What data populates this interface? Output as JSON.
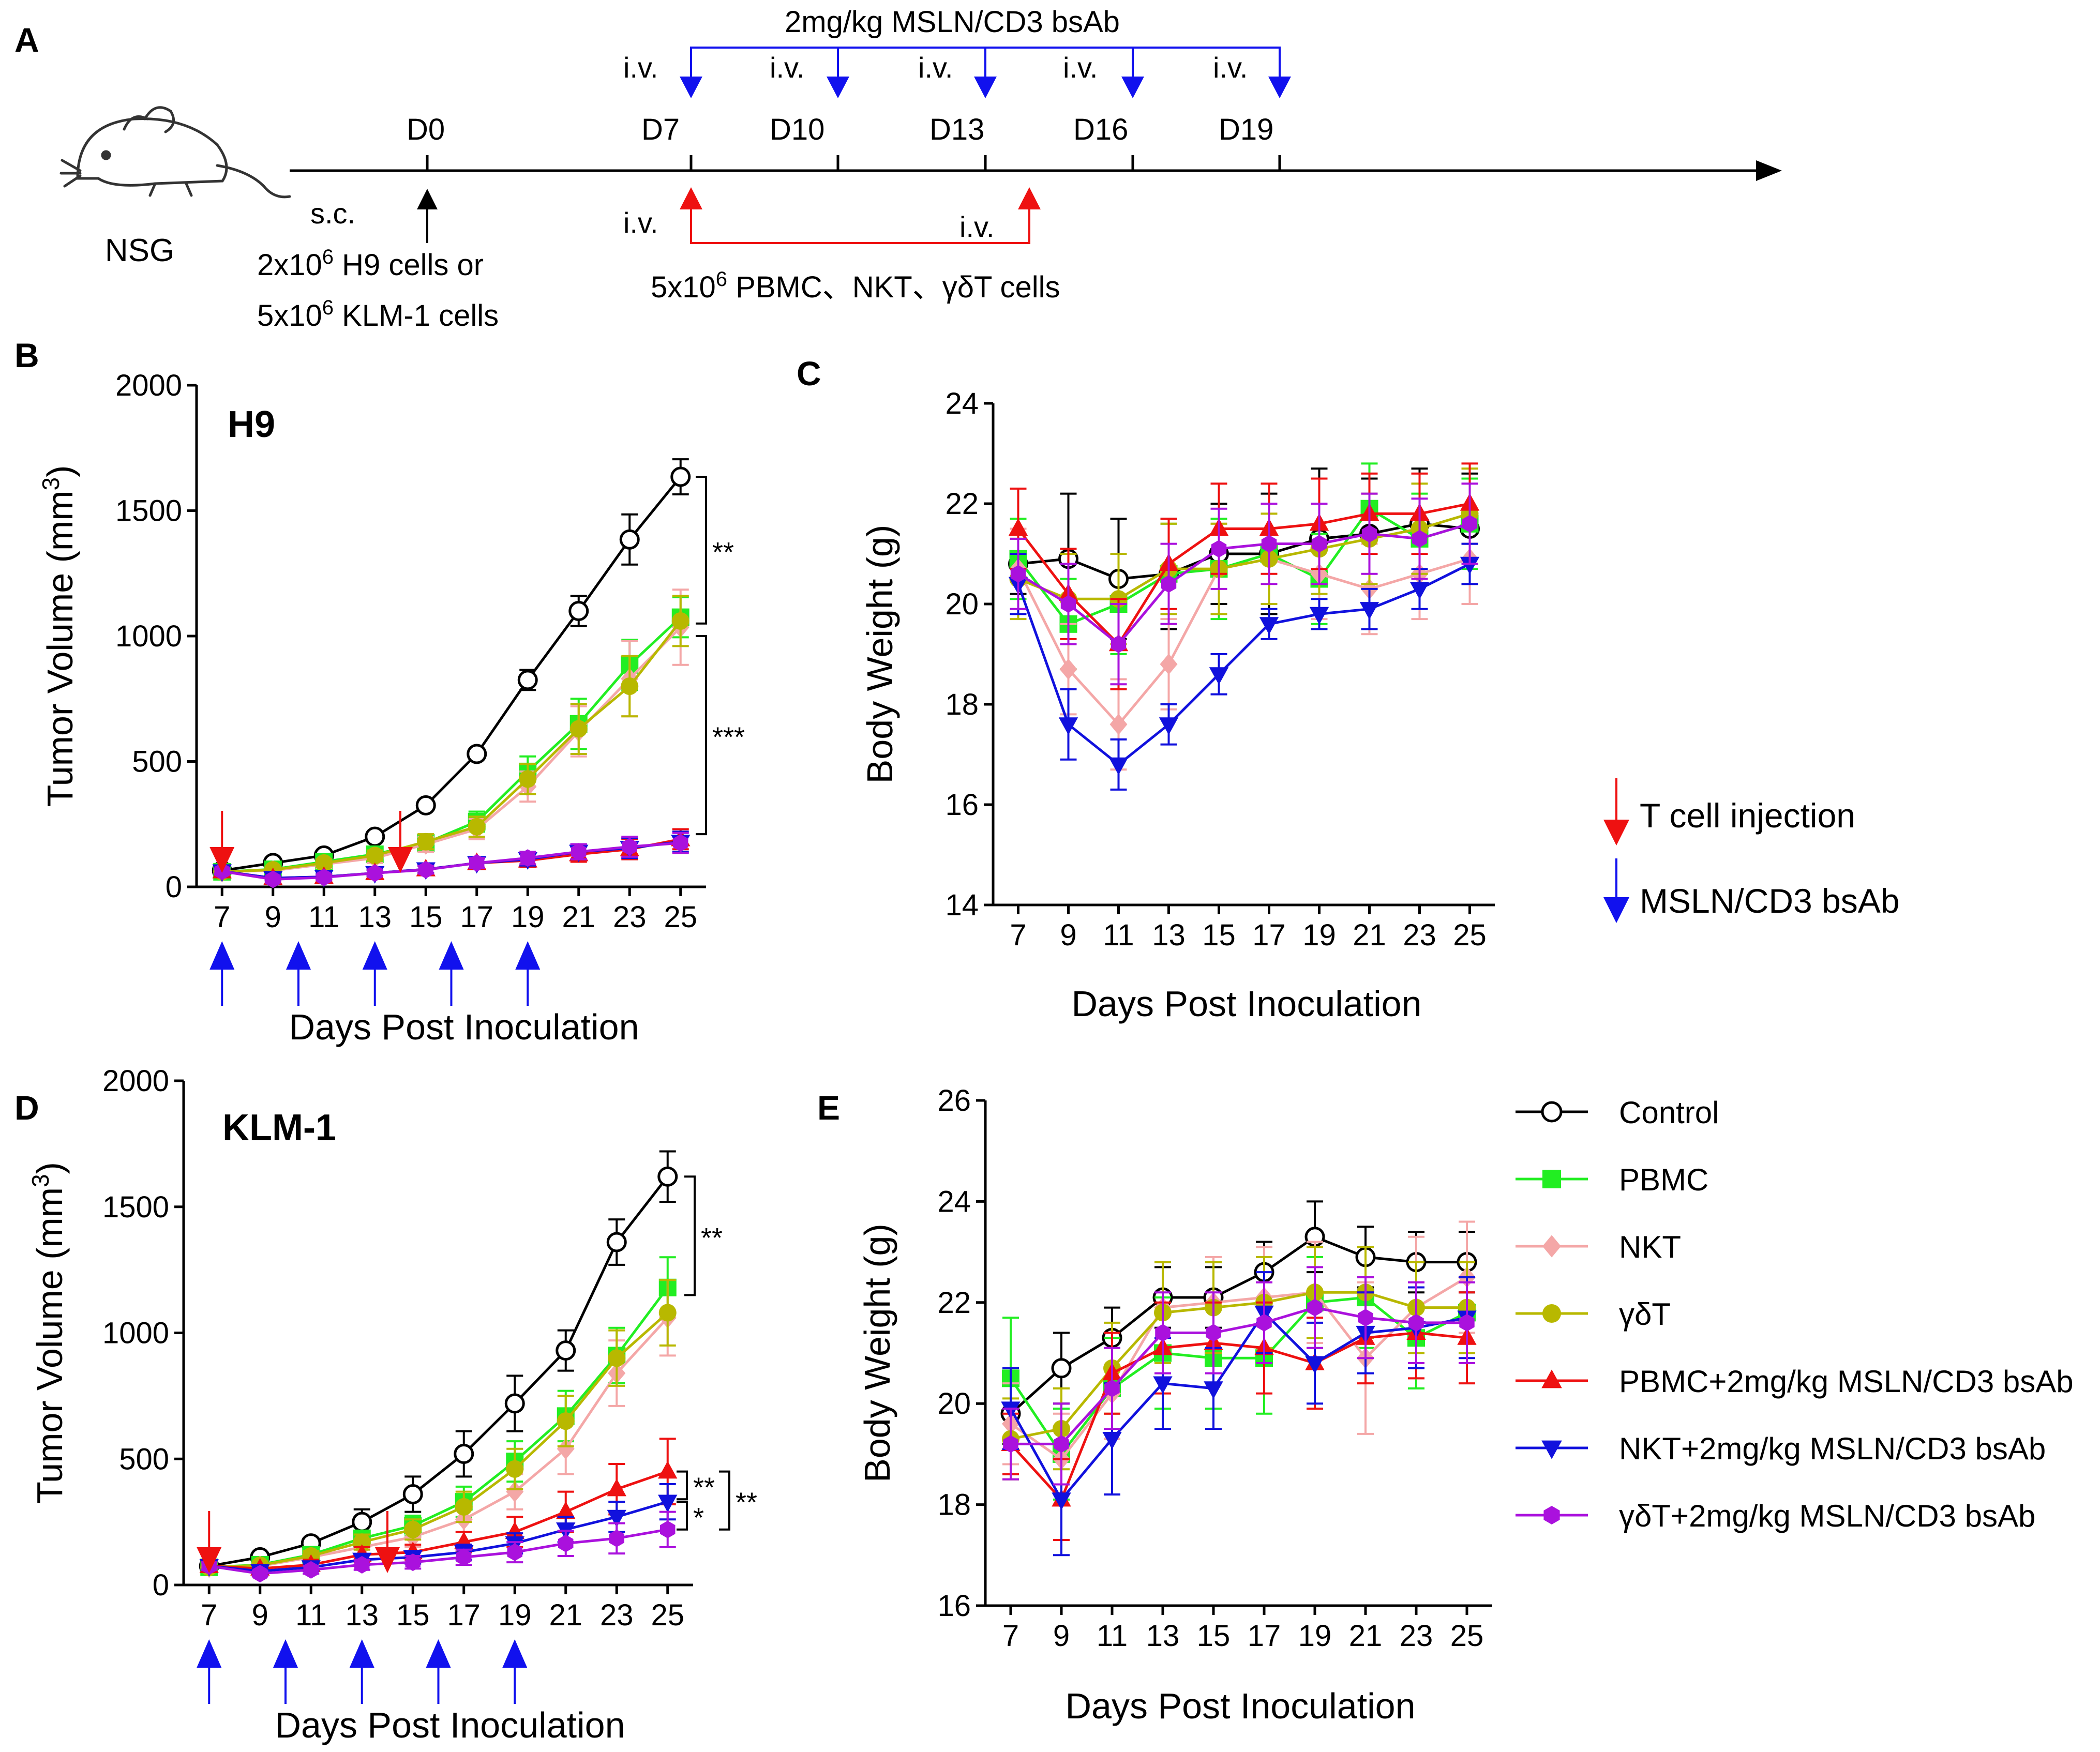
{
  "colors": {
    "control": "#000000",
    "pbmc": "#22ee22",
    "nkt": "#f4a7a7",
    "gdT": "#b8b800",
    "pbmc_bsab": "#ee1111",
    "nkt_bsab": "#1111dd",
    "gdT_bsab": "#aa11dd",
    "t_cell_arrow": "#ee1111",
    "bsab_arrow": "#1111ee"
  },
  "panel_a": {
    "letter": "A",
    "mouse_label": "NSG",
    "bsab_header": "2mg/kg MSLN/CD3 bsAb",
    "iv": "i.v.",
    "sc": "s.c.",
    "days": [
      "D0",
      "D7",
      "D10",
      "D13",
      "D16",
      "D19"
    ],
    "cells_line1_pre": "2x10",
    "cells_line1_exp": "6",
    "cells_line1_post": "  H9 cells or",
    "cells_line2_pre": "5x10",
    "cells_line2_exp": "6",
    "cells_line2_post": "  KLM-1 cells",
    "effector_pre": "5x10",
    "effector_exp": "6",
    "effector_post": "  PBMC、NKT、γδT cells"
  },
  "legend_arrows": {
    "t_cell": "T cell injection",
    "bsab": "MSLN/CD3 bsAb"
  },
  "legend_series": [
    "Control",
    "PBMC",
    "NKT",
    "γδT",
    "PBMC+2mg/kg MSLN/CD3 bsAb",
    "NKT+2mg/kg MSLN/CD3 bsAb",
    "γδT+2mg/kg MSLN/CD3 bsAb"
  ],
  "chart_data": [
    {
      "panel": "B",
      "type": "line",
      "title": "H9",
      "xlabel": "Days Post Inoculation",
      "ylabel_pre": "Tumor Volume (mm",
      "ylabel_sup": "3",
      "ylabel_post": ")",
      "x": [
        7,
        9,
        11,
        13,
        15,
        17,
        19,
        21,
        23,
        25
      ],
      "xlim": [
        6,
        26
      ],
      "ylim": [
        0,
        2000
      ],
      "yticks": [
        0,
        500,
        1000,
        1500,
        2000
      ],
      "t_cell_injection_days": [
        7,
        14
      ],
      "bsab_injection_days": [
        7,
        10,
        13,
        16,
        19
      ],
      "series": [
        {
          "name": "Control",
          "key": "control",
          "marker": "circle-open",
          "values": [
            65,
            95,
            125,
            200,
            325,
            530,
            825,
            1100,
            1385,
            1635
          ],
          "err": [
            12,
            12,
            15,
            15,
            20,
            20,
            40,
            60,
            100,
            70
          ]
        },
        {
          "name": "PBMC",
          "key": "pbmc",
          "marker": "square",
          "values": [
            60,
            70,
            100,
            130,
            175,
            260,
            460,
            650,
            885,
            1075
          ],
          "err": [
            10,
            10,
            15,
            25,
            30,
            40,
            60,
            100,
            100,
            80
          ]
        },
        {
          "name": "NKT",
          "key": "nkt",
          "marker": "diamond",
          "values": [
            60,
            65,
            90,
            115,
            170,
            230,
            400,
            620,
            830,
            1035
          ],
          "err": [
            10,
            10,
            15,
            20,
            30,
            40,
            60,
            100,
            150,
            150
          ]
        },
        {
          "name": "γδT",
          "key": "gdT",
          "marker": "circle",
          "values": [
            60,
            68,
            95,
            125,
            180,
            240,
            430,
            630,
            800,
            1060
          ],
          "err": [
            10,
            10,
            15,
            20,
            30,
            40,
            60,
            100,
            120,
            100
          ]
        },
        {
          "name": "PBMC+2mg/kg MSLN/CD3 bsAb",
          "key": "pbmc_bsab",
          "marker": "triangle-up",
          "values": [
            62,
            35,
            40,
            55,
            70,
            95,
            105,
            130,
            150,
            190
          ],
          "err": [
            10,
            8,
            10,
            12,
            15,
            20,
            25,
            30,
            40,
            40
          ]
        },
        {
          "name": "NKT+2mg/kg MSLN/CD3 bsAb",
          "key": "nkt_bsab",
          "marker": "triangle-down",
          "values": [
            62,
            35,
            40,
            55,
            70,
            95,
            110,
            140,
            155,
            180
          ],
          "err": [
            10,
            8,
            10,
            12,
            15,
            20,
            25,
            30,
            40,
            40
          ]
        },
        {
          "name": "γδT+2mg/kg MSLN/CD3 bsAb",
          "key": "gdT_bsab",
          "marker": "hexagon",
          "values": [
            62,
            30,
            38,
            55,
            68,
            95,
            115,
            140,
            160,
            175
          ],
          "err": [
            10,
            8,
            10,
            12,
            15,
            20,
            25,
            30,
            40,
            40
          ]
        }
      ],
      "significance": [
        {
          "label": "**",
          "from": 1635,
          "to": 1050
        },
        {
          "label": "***",
          "from": 1000,
          "to": 210
        }
      ]
    },
    {
      "panel": "C",
      "type": "line",
      "title": "",
      "xlabel": "Days Post Inoculation",
      "ylabel": "Body Weight (g)",
      "x": [
        7,
        9,
        11,
        13,
        15,
        17,
        19,
        21,
        23,
        25
      ],
      "xlim": [
        6,
        26
      ],
      "ylim": [
        14,
        24
      ],
      "yticks": [
        14,
        16,
        18,
        20,
        22,
        24
      ],
      "series": [
        {
          "name": "Control",
          "key": "control",
          "marker": "circle-open",
          "values": [
            20.8,
            20.9,
            20.5,
            20.6,
            21.0,
            21.0,
            21.3,
            21.4,
            21.6,
            21.5
          ],
          "err": [
            0.6,
            1.3,
            1.2,
            1.1,
            1.0,
            1.2,
            1.4,
            1.1,
            1.1,
            1.1
          ]
        },
        {
          "name": "PBMC",
          "key": "pbmc",
          "marker": "square",
          "values": [
            20.9,
            19.6,
            20.0,
            20.6,
            20.7,
            21.0,
            20.5,
            21.9,
            21.3,
            21.6
          ],
          "err": [
            0.8,
            0.9,
            1.0,
            1.0,
            1.0,
            1.0,
            0.9,
            0.9,
            0.9,
            0.9
          ]
        },
        {
          "name": "NKT",
          "key": "nkt",
          "marker": "diamond",
          "values": [
            20.7,
            18.7,
            17.6,
            18.8,
            20.7,
            20.9,
            20.6,
            20.3,
            20.6,
            20.9
          ],
          "err": [
            0.8,
            0.9,
            0.9,
            0.9,
            0.9,
            0.9,
            0.9,
            0.9,
            0.9,
            0.9
          ]
        },
        {
          "name": "γδT",
          "key": "gdT",
          "marker": "circle",
          "values": [
            20.5,
            20.1,
            20.1,
            20.7,
            20.7,
            20.9,
            21.1,
            21.3,
            21.5,
            21.8
          ],
          "err": [
            0.8,
            0.9,
            0.9,
            0.9,
            0.9,
            0.9,
            0.9,
            0.9,
            0.9,
            0.9
          ]
        },
        {
          "name": "PBMC+2mg/kg MSLN/CD3 bsAb",
          "key": "pbmc_bsab",
          "marker": "triangle-up",
          "values": [
            21.5,
            20.2,
            19.2,
            20.8,
            21.5,
            21.5,
            21.6,
            21.8,
            21.8,
            22.0
          ],
          "err": [
            0.8,
            0.9,
            0.9,
            0.9,
            0.9,
            0.9,
            0.9,
            0.8,
            0.8,
            0.8
          ]
        },
        {
          "name": "NKT+2mg/kg MSLN/CD3 bsAb",
          "key": "nkt_bsab",
          "marker": "triangle-down",
          "values": [
            20.4,
            17.6,
            16.8,
            17.6,
            18.6,
            19.6,
            19.8,
            19.9,
            20.3,
            20.8
          ],
          "err": [
            0.6,
            0.7,
            0.5,
            0.4,
            0.4,
            0.3,
            0.3,
            0.4,
            0.4,
            0.4
          ]
        },
        {
          "name": "γδT+2mg/kg MSLN/CD3 bsAb",
          "key": "gdT_bsab",
          "marker": "hexagon",
          "values": [
            20.6,
            20.0,
            19.2,
            20.4,
            21.1,
            21.2,
            21.2,
            21.4,
            21.3,
            21.6
          ],
          "err": [
            0.7,
            0.8,
            0.8,
            0.8,
            0.8,
            0.8,
            0.8,
            0.8,
            0.8,
            0.8
          ]
        }
      ]
    },
    {
      "panel": "D",
      "type": "line",
      "title": "KLM-1",
      "xlabel": "Days Post Inoculation",
      "ylabel_pre": "Tumor Volume (mm",
      "ylabel_sup": "3",
      "ylabel_post": ")",
      "x": [
        7,
        9,
        11,
        13,
        15,
        17,
        19,
        21,
        23,
        25
      ],
      "xlim": [
        6,
        26
      ],
      "ylim": [
        0,
        2000
      ],
      "yticks": [
        0,
        500,
        1000,
        1500,
        2000
      ],
      "t_cell_injection_days": [
        7,
        14
      ],
      "bsab_injection_days": [
        7,
        10,
        13,
        16,
        19
      ],
      "series": [
        {
          "name": "Control",
          "key": "control",
          "marker": "circle-open",
          "values": [
            75,
            110,
            165,
            250,
            360,
            520,
            720,
            930,
            1360,
            1620
          ],
          "err": [
            15,
            15,
            20,
            50,
            70,
            90,
            110,
            80,
            90,
            100
          ]
        },
        {
          "name": "PBMC",
          "key": "pbmc",
          "marker": "square",
          "values": [
            70,
            80,
            120,
            185,
            235,
            330,
            490,
            670,
            910,
            1180
          ],
          "err": [
            15,
            15,
            20,
            30,
            40,
            60,
            80,
            100,
            110,
            120
          ]
        },
        {
          "name": "NKT",
          "key": "nkt",
          "marker": "diamond",
          "values": [
            70,
            75,
            110,
            150,
            190,
            260,
            370,
            540,
            840,
            1060
          ],
          "err": [
            15,
            15,
            20,
            30,
            40,
            50,
            70,
            100,
            130,
            150
          ]
        },
        {
          "name": "γδT",
          "key": "gdT",
          "marker": "circle",
          "values": [
            70,
            78,
            115,
            170,
            220,
            310,
            460,
            650,
            900,
            1080
          ],
          "err": [
            15,
            15,
            20,
            30,
            40,
            60,
            80,
            100,
            110,
            130
          ]
        },
        {
          "name": "PBMC+2mg/kg MSLN/CD3 bsAb",
          "key": "pbmc_bsab",
          "marker": "triangle-up",
          "values": [
            75,
            65,
            80,
            120,
            130,
            170,
            210,
            290,
            380,
            450
          ],
          "err": [
            15,
            15,
            20,
            30,
            30,
            40,
            60,
            80,
            100,
            130
          ]
        },
        {
          "name": "NKT+2mg/kg MSLN/CD3 bsAb",
          "key": "nkt_bsab",
          "marker": "triangle-down",
          "values": [
            75,
            55,
            70,
            100,
            110,
            130,
            165,
            220,
            270,
            330
          ],
          "err": [
            15,
            10,
            15,
            20,
            25,
            30,
            40,
            50,
            60,
            70
          ]
        },
        {
          "name": "γδT+2mg/kg MSLN/CD3 bsAb",
          "key": "gdT_bsab",
          "marker": "hexagon",
          "values": [
            75,
            45,
            60,
            80,
            90,
            110,
            130,
            165,
            185,
            220
          ],
          "err": [
            15,
            10,
            15,
            20,
            25,
            30,
            40,
            50,
            60,
            70
          ]
        }
      ],
      "significance": [
        {
          "label": "**",
          "from": 1620,
          "to": 1150
        },
        {
          "label": "**",
          "from": 450,
          "to": 340
        },
        {
          "label": "*",
          "from": 330,
          "to": 220
        },
        {
          "label": "**",
          "from": 450,
          "to": 220
        }
      ]
    },
    {
      "panel": "E",
      "type": "line",
      "title": "",
      "xlabel": "Days Post Inoculation",
      "ylabel": "Body Weight (g)",
      "x": [
        7,
        9,
        11,
        13,
        15,
        17,
        19,
        21,
        23,
        25
      ],
      "xlim": [
        6,
        26
      ],
      "ylim": [
        16,
        26
      ],
      "yticks": [
        16,
        18,
        20,
        22,
        24,
        26
      ],
      "series": [
        {
          "name": "Control",
          "key": "control",
          "marker": "circle-open",
          "values": [
            19.8,
            20.7,
            21.3,
            22.1,
            22.1,
            22.6,
            23.3,
            22.9,
            22.8,
            22.8
          ],
          "err": [
            0.6,
            0.7,
            0.6,
            0.6,
            0.6,
            0.6,
            0.7,
            0.6,
            0.6,
            0.6
          ]
        },
        {
          "name": "PBMC",
          "key": "pbmc",
          "marker": "square",
          "values": [
            20.5,
            19.0,
            20.3,
            21.0,
            20.9,
            20.9,
            22.0,
            22.1,
            21.3,
            21.8
          ],
          "err": [
            1.2,
            0.9,
            1.0,
            1.1,
            1.0,
            1.1,
            0.9,
            1.0,
            1.0,
            1.0
          ]
        },
        {
          "name": "NKT",
          "key": "nkt",
          "marker": "diamond",
          "values": [
            19.6,
            18.9,
            20.2,
            21.9,
            22.0,
            22.1,
            22.2,
            20.9,
            21.9,
            22.5
          ],
          "err": [
            0.8,
            0.9,
            0.9,
            0.9,
            0.9,
            1.0,
            1.0,
            1.5,
            1.4,
            1.1
          ]
        },
        {
          "name": "γδT",
          "key": "gdT",
          "marker": "circle",
          "values": [
            19.3,
            19.5,
            20.7,
            21.8,
            21.9,
            22.0,
            22.2,
            22.2,
            21.9,
            21.9
          ],
          "err": [
            0.8,
            0.8,
            0.9,
            1.0,
            0.9,
            0.9,
            0.9,
            0.9,
            0.9,
            0.9
          ]
        },
        {
          "name": "PBMC+2mg/kg MSLN/CD3 bsAb",
          "key": "pbmc_bsab",
          "marker": "triangle-up",
          "values": [
            19.2,
            18.1,
            20.6,
            21.1,
            21.2,
            21.1,
            20.8,
            21.3,
            21.4,
            21.3
          ],
          "err": [
            0.6,
            0.8,
            0.8,
            0.9,
            0.8,
            0.9,
            0.9,
            0.9,
            0.9,
            0.9
          ]
        },
        {
          "name": "NKT+2mg/kg MSLN/CD3 bsAb",
          "key": "nkt_bsab",
          "marker": "triangle-down",
          "values": [
            19.9,
            18.1,
            19.3,
            20.4,
            20.3,
            21.8,
            20.8,
            21.4,
            21.5,
            21.7
          ],
          "err": [
            0.8,
            1.1,
            1.1,
            0.9,
            0.8,
            0.8,
            0.8,
            0.8,
            0.8,
            0.8
          ]
        },
        {
          "name": "γδT+2mg/kg MSLN/CD3 bsAb",
          "key": "gdT_bsab",
          "marker": "hexagon",
          "values": [
            19.2,
            19.2,
            20.3,
            21.4,
            21.4,
            21.6,
            21.9,
            21.7,
            21.6,
            21.6
          ],
          "err": [
            0.7,
            0.8,
            0.8,
            0.8,
            0.8,
            0.8,
            0.8,
            0.8,
            0.8,
            0.8
          ]
        }
      ]
    }
  ]
}
